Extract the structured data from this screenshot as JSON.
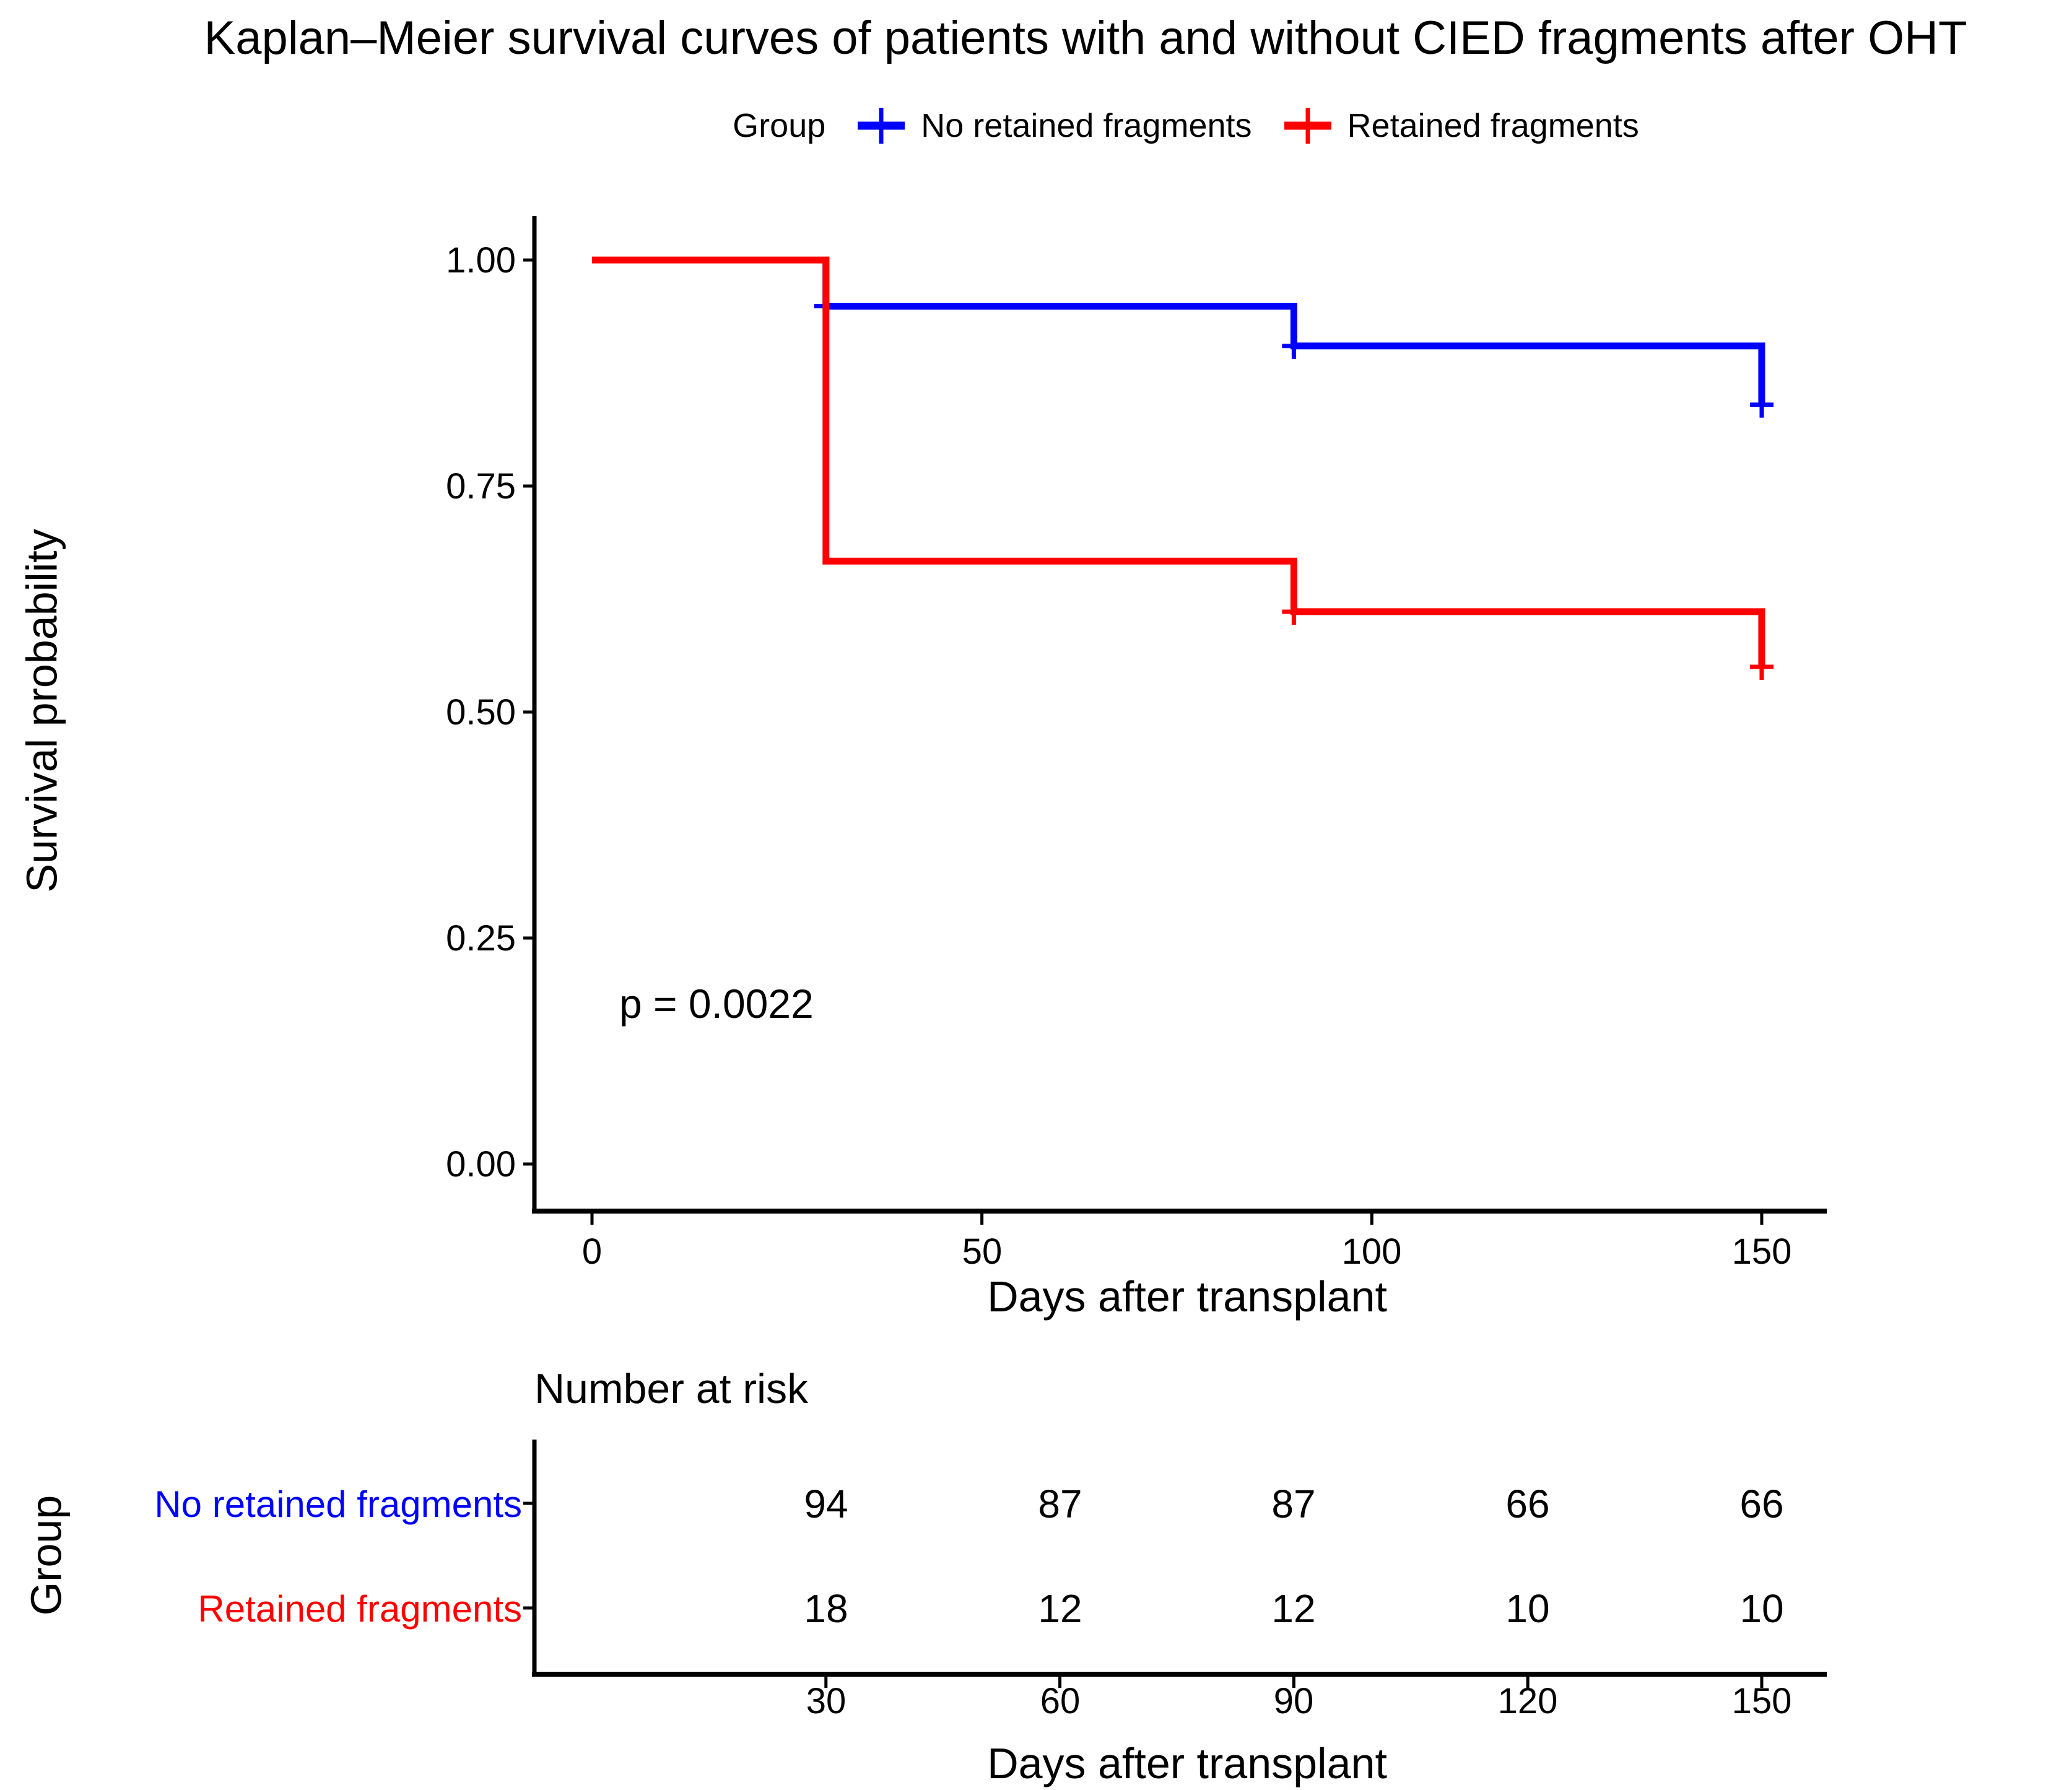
{
  "title": "Kaplan–Meier survival curves of patients with and without CIED fragments after OHT",
  "legend": {
    "label": "Group",
    "items": [
      {
        "label": "No retained fragments",
        "color": "#0000FF"
      },
      {
        "label": "Retained fragments",
        "color": "#FF0000"
      }
    ]
  },
  "chart_data": {
    "type": "line",
    "subtype": "kaplan-meier-step",
    "title": "Kaplan–Meier survival curves of patients with and without CIED fragments after OHT",
    "xlabel": "Days after transplant",
    "ylabel": "Survival probability",
    "pvalue_label": "p = 0.0022",
    "xlim": [
      0,
      158
    ],
    "ylim": [
      0,
      1
    ],
    "xtick_values": [
      0,
      50,
      100,
      150
    ],
    "xtick_labels": [
      "0",
      "50",
      "100",
      "150"
    ],
    "ytick_values": [
      1.0,
      0.75,
      0.5,
      0.25,
      0.0
    ],
    "ytick_labels": [
      "1.00",
      "0.75",
      "0.50",
      "0.25",
      "0.00"
    ],
    "grid": false,
    "legend_position": "top",
    "series": [
      {
        "name": "No retained fragments",
        "color": "#0000FF",
        "steps": [
          [
            0,
            1.0
          ],
          [
            30,
            1.0
          ],
          [
            30,
            0.949
          ],
          [
            90,
            0.949
          ],
          [
            90,
            0.905
          ],
          [
            150,
            0.905
          ],
          [
            150,
            0.84
          ]
        ],
        "censor_marks": [
          [
            30,
            0.949
          ],
          [
            90,
            0.905
          ],
          [
            150,
            0.84
          ]
        ]
      },
      {
        "name": "Retained fragments",
        "color": "#FF0000",
        "steps": [
          [
            0,
            1.0
          ],
          [
            30,
            1.0
          ],
          [
            30,
            0.667
          ],
          [
            90,
            0.667
          ],
          [
            90,
            0.611
          ],
          [
            150,
            0.611
          ],
          [
            150,
            0.55
          ]
        ],
        "censor_marks": [
          [
            90,
            0.611
          ],
          [
            150,
            0.55
          ]
        ]
      }
    ]
  },
  "risk_table": {
    "title": "Number at risk",
    "group_axis_label": "Group",
    "xlabel": "Days after transplant",
    "xtick_values": [
      30,
      60,
      90,
      120,
      150
    ],
    "xtick_labels": [
      "30",
      "60",
      "90",
      "120",
      "150"
    ],
    "rows": [
      {
        "label": "No retained fragments",
        "color": "#0000FF",
        "values": [
          94,
          87,
          87,
          66,
          66
        ]
      },
      {
        "label": "Retained fragments",
        "color": "#FF0000",
        "values": [
          18,
          12,
          12,
          10,
          10
        ]
      }
    ]
  }
}
